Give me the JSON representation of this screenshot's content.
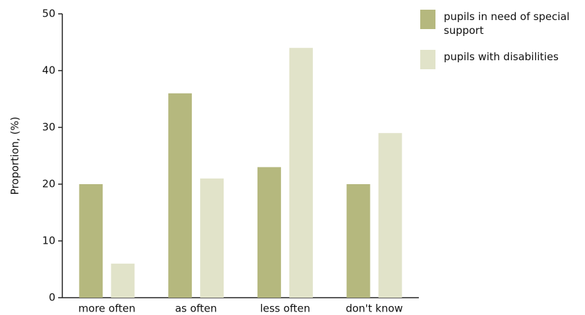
{
  "chart_data": {
    "type": "bar",
    "y_label": "Proportion, (%)",
    "categories": [
      "more often",
      "as often",
      "less often",
      "don't know"
    ],
    "series": [
      {
        "name": "pupils in need of special support",
        "color": "#b5b87e",
        "values": [
          20,
          36,
          23,
          20
        ]
      },
      {
        "name": "pupils with disabilities",
        "color": "#e1e3c9",
        "values": [
          6,
          21,
          44,
          29
        ]
      }
    ],
    "ylim": [
      0,
      50
    ],
    "yticks": [
      0,
      10,
      20,
      30,
      40,
      50
    ],
    "grid": false,
    "legend": "right"
  }
}
